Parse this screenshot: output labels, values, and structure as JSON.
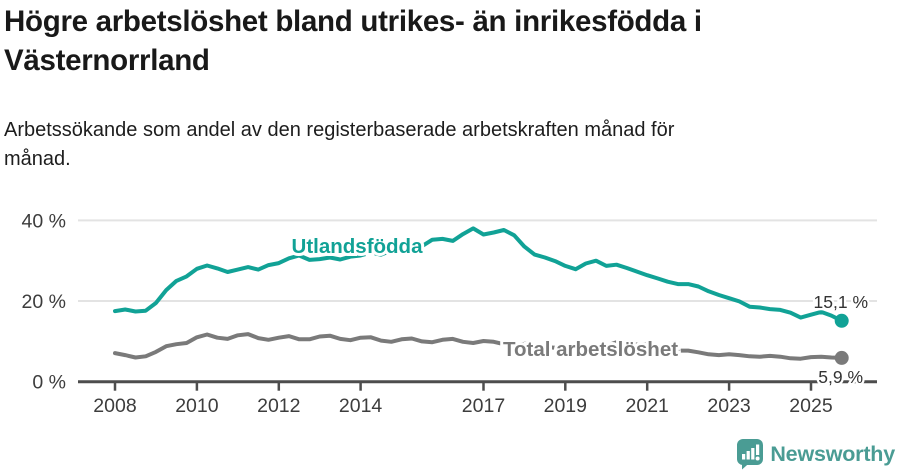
{
  "chart_data": {
    "type": "line",
    "title": "Högre arbetslöshet bland utrikes- än inrikesfödda i Västernorrland",
    "subtitle": "Arbetssökande som andel av den registerbaserade arbetskraften månad för månad.",
    "xlabel": "",
    "ylabel": "",
    "y_unit": "%",
    "ylim": [
      0,
      44
    ],
    "x_range": [
      2008,
      2025.75
    ],
    "grid": "horizontal",
    "legend_position": "inline-labels",
    "yticks": [
      {
        "value": 0,
        "label": "0 %"
      },
      {
        "value": 20,
        "label": "20 %"
      },
      {
        "value": 40,
        "label": "40 %"
      }
    ],
    "xticks": [
      {
        "value": 2008,
        "label": "2008"
      },
      {
        "value": 2010,
        "label": "2010"
      },
      {
        "value": 2012,
        "label": "2012"
      },
      {
        "value": 2014,
        "label": "2014"
      },
      {
        "value": 2017,
        "label": "2017"
      },
      {
        "value": 2019,
        "label": "2019"
      },
      {
        "value": 2021,
        "label": "2021"
      },
      {
        "value": 2023,
        "label": "2023"
      },
      {
        "value": 2025,
        "label": "2025"
      }
    ],
    "x": [
      2008,
      2008.25,
      2008.5,
      2008.75,
      2009,
      2009.25,
      2009.5,
      2009.75,
      2010,
      2010.25,
      2010.5,
      2010.75,
      2011,
      2011.25,
      2011.5,
      2011.75,
      2012,
      2012.25,
      2012.5,
      2012.75,
      2013,
      2013.25,
      2013.5,
      2013.75,
      2014,
      2014.25,
      2014.5,
      2014.75,
      2015,
      2015.25,
      2015.5,
      2015.75,
      2016,
      2016.25,
      2016.5,
      2016.75,
      2017,
      2017.25,
      2017.5,
      2017.75,
      2018,
      2018.25,
      2018.5,
      2018.75,
      2019,
      2019.25,
      2019.5,
      2019.75,
      2020,
      2020.25,
      2020.5,
      2020.75,
      2021,
      2021.25,
      2021.5,
      2021.75,
      2022,
      2022.25,
      2022.5,
      2022.75,
      2023,
      2023.25,
      2023.5,
      2023.75,
      2024,
      2024.25,
      2024.5,
      2024.75,
      2025,
      2025.25,
      2025.5,
      2025.75
    ],
    "series": [
      {
        "name": "Utlandsfödda",
        "color": "#11a296",
        "end_label": "15,1 %",
        "end_value": 15.1,
        "values": [
          17.5,
          17.9,
          17.4,
          17.6,
          19.5,
          22.7,
          25.0,
          26.1,
          28.0,
          28.8,
          28.1,
          27.2,
          27.8,
          28.4,
          27.8,
          28.9,
          29.4,
          30.6,
          31.3,
          30.2,
          30.4,
          30.8,
          30.3,
          31.0,
          31.3,
          32.0,
          31.5,
          32.5,
          33.0,
          34.0,
          33.6,
          35.2,
          35.4,
          34.9,
          36.6,
          38.0,
          36.5,
          37.0,
          37.6,
          36.3,
          33.5,
          31.5,
          30.8,
          29.9,
          28.7,
          27.9,
          29.3,
          30.0,
          28.7,
          29.0,
          28.2,
          27.3,
          26.4,
          25.6,
          24.8,
          24.2,
          24.2,
          23.6,
          22.4,
          21.5,
          20.7,
          19.9,
          18.6,
          18.4,
          18.0,
          17.8,
          17.1,
          15.9,
          16.6,
          17.3,
          16.4,
          15.1
        ]
      },
      {
        "name": "Total arbetslöshet",
        "color": "#7a7a7a",
        "end_label": "5,9 %",
        "end_value": 5.9,
        "values": [
          7.1,
          6.6,
          6.0,
          6.3,
          7.4,
          8.8,
          9.3,
          9.6,
          11.0,
          11.7,
          10.9,
          10.6,
          11.5,
          11.8,
          10.8,
          10.4,
          10.9,
          11.3,
          10.5,
          10.5,
          11.2,
          11.4,
          10.6,
          10.3,
          10.9,
          11.0,
          10.2,
          9.9,
          10.5,
          10.7,
          10.0,
          9.8,
          10.4,
          10.6,
          9.9,
          9.6,
          10.1,
          9.9,
          9.3,
          9.0,
          9.4,
          9.2,
          8.6,
          8.4,
          8.8,
          8.7,
          8.3,
          8.4,
          8.9,
          9.8,
          9.6,
          9.2,
          9.3,
          8.9,
          8.2,
          7.7,
          7.7,
          7.3,
          6.8,
          6.6,
          6.8,
          6.6,
          6.3,
          6.2,
          6.4,
          6.2,
          5.8,
          5.7,
          6.1,
          6.2,
          6.0,
          5.9
        ]
      }
    ],
    "axis_color": "#4d4d4d",
    "gridline_color": "#e3e3e3",
    "tick_label_color": "#3d3d3d",
    "end_label_color": "#333333"
  },
  "footer": {
    "brand": "Newsworthy",
    "logo_color": "#4a9c94"
  }
}
